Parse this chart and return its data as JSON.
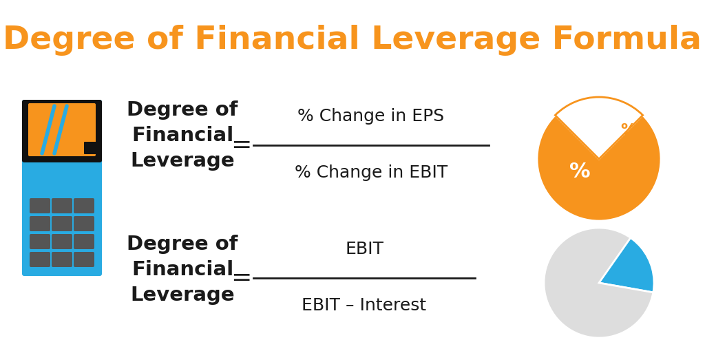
{
  "title": "Degree of Financial Leverage Formula",
  "title_color": "#F7941D",
  "title_fontsize": 34,
  "bg_color": "#FFFFFF",
  "formula1_label": "Degree of\nFinancial\nLeverage",
  "formula1_numerator": "% Change in EPS",
  "formula1_denominator": "% Change in EBIT",
  "formula2_label": "Degree of\nFinancial\nLeverage",
  "formula2_numerator": "EBIT",
  "formula2_denominator": "EBIT – Interest",
  "formula_label_fontsize": 21,
  "formula_text_fontsize": 18,
  "equals_fontsize": 26,
  "text_color": "#1a1a1a",
  "calc_body_color": "#29ABE2",
  "calc_screen_bg": "#111111",
  "calc_screen_color": "#F7941D",
  "calc_button_color": "#555555",
  "pie1_orange": "#F7941D",
  "pie1_white": "#FFFFFF",
  "pie2_blue": "#29ABE2",
  "pie2_gray": "#666666",
  "pie2_lightgray": "#CCCCCC"
}
